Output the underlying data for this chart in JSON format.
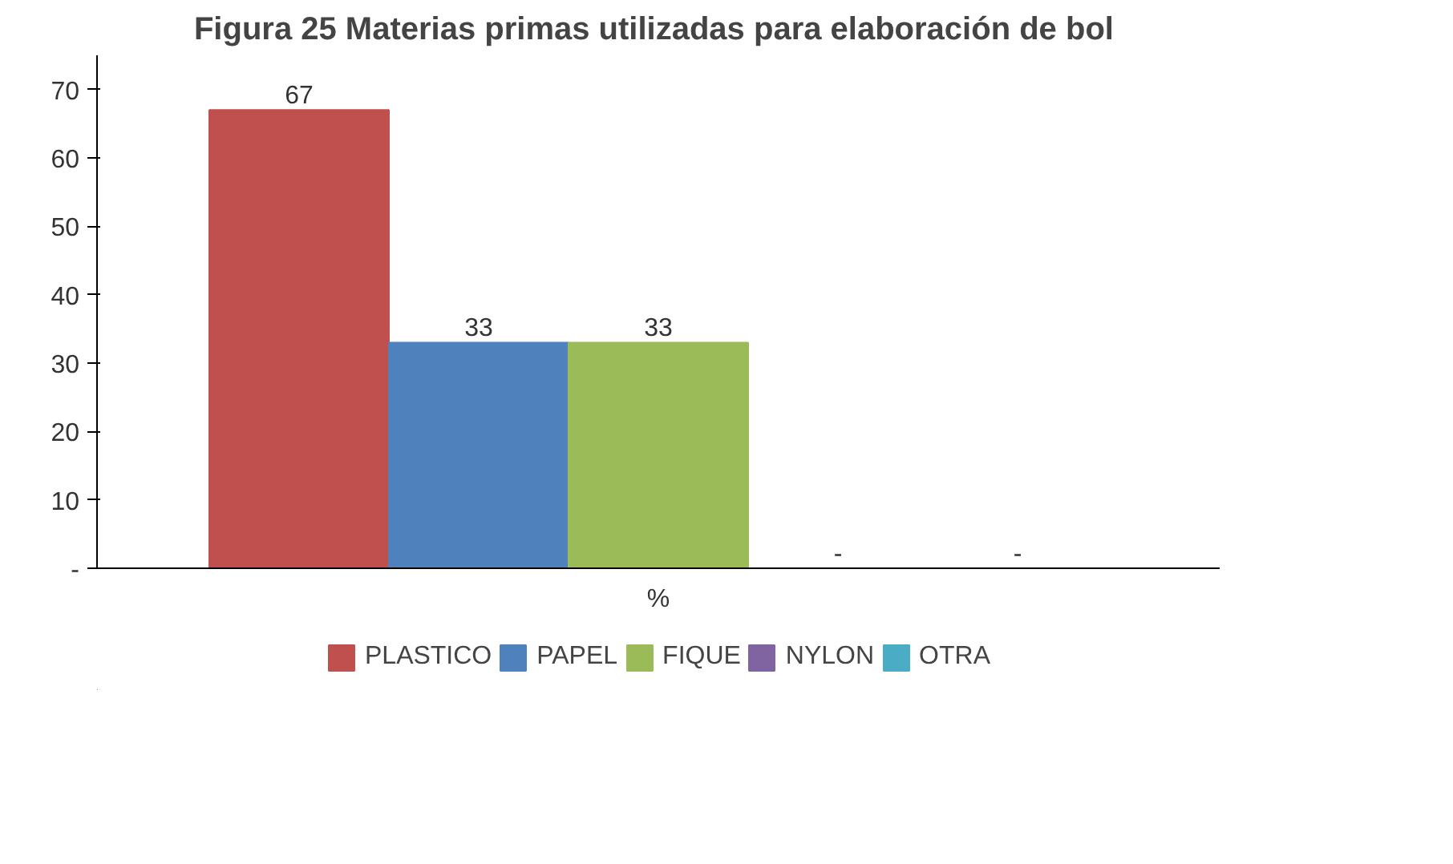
{
  "chart_data": {
    "type": "bar",
    "title": "Figura 25  Materias primas utilizadas para elaboración de bol",
    "categories": [
      "%"
    ],
    "series": [
      {
        "name": "PLASTICO",
        "color": "#c0504d",
        "values": [
          67
        ],
        "value_labels": [
          "67"
        ]
      },
      {
        "name": "PAPEL",
        "color": "#4f81bd",
        "values": [
          33
        ],
        "value_labels": [
          "33"
        ]
      },
      {
        "name": "FIQUE",
        "color": "#9bbb59",
        "values": [
          33
        ],
        "value_labels": [
          "33"
        ]
      },
      {
        "name": "NYLON",
        "color": "#8064a2",
        "values": [
          0
        ],
        "value_labels": [
          "-"
        ]
      },
      {
        "name": "OTRA",
        "color": "#4bacc6",
        "values": [
          0
        ],
        "value_labels": [
          "-"
        ]
      }
    ],
    "ylim": [
      0,
      75
    ],
    "yticks": [
      {
        "value": 0,
        "label": "-"
      },
      10,
      20,
      30,
      40,
      50,
      60,
      70
    ],
    "grid": false,
    "legend": "bottom"
  }
}
